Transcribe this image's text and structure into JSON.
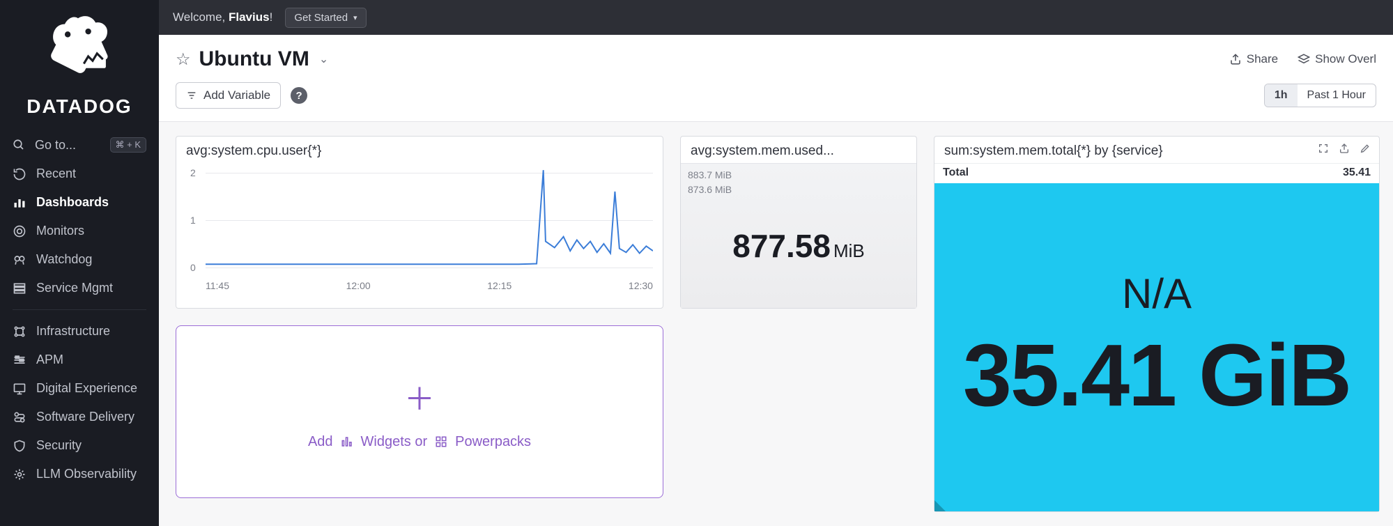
{
  "brand": "DATADOG",
  "goto": {
    "label": "Go to...",
    "shortcut": "⌘ + K"
  },
  "sidebar": {
    "items": [
      {
        "label": "Recent",
        "icon": "recent-icon"
      },
      {
        "label": "Dashboards",
        "icon": "dashboards-icon",
        "active": true
      },
      {
        "label": "Monitors",
        "icon": "monitors-icon"
      },
      {
        "label": "Watchdog",
        "icon": "watchdog-icon"
      },
      {
        "label": "Service Mgmt",
        "icon": "service-mgmt-icon"
      }
    ],
    "items2": [
      {
        "label": "Infrastructure",
        "icon": "infrastructure-icon"
      },
      {
        "label": "APM",
        "icon": "apm-icon"
      },
      {
        "label": "Digital Experience",
        "icon": "digital-exp-icon"
      },
      {
        "label": "Software Delivery",
        "icon": "software-delivery-icon"
      },
      {
        "label": "Security",
        "icon": "security-icon"
      },
      {
        "label": "LLM Observability",
        "icon": "llm-obs-icon"
      }
    ]
  },
  "topbar": {
    "welcome_prefix": "Welcome, ",
    "username": "Flavius",
    "suffix": "!",
    "get_started": "Get Started"
  },
  "page": {
    "title": "Ubuntu VM"
  },
  "actions": {
    "share": "Share",
    "overlays": "Show Overl"
  },
  "toolbar": {
    "add_variable": "Add Variable"
  },
  "time": {
    "short": "1h",
    "long": "Past 1 Hour"
  },
  "cpu_chart": {
    "title": "avg:system.cpu.user{*}",
    "type": "line",
    "line_color": "#3b7dd8",
    "grid_color": "#e7e8ec",
    "background": "#ffffff",
    "ylim": [
      0,
      2.2
    ],
    "yticks": [
      0,
      1,
      2
    ],
    "xticks": [
      "11:45",
      "12:00",
      "12:15",
      "12:30"
    ],
    "series": [
      [
        0,
        0.07
      ],
      [
        0.05,
        0.07
      ],
      [
        0.1,
        0.07
      ],
      [
        0.15,
        0.07
      ],
      [
        0.2,
        0.07
      ],
      [
        0.25,
        0.07
      ],
      [
        0.3,
        0.07
      ],
      [
        0.35,
        0.07
      ],
      [
        0.4,
        0.07
      ],
      [
        0.45,
        0.07
      ],
      [
        0.5,
        0.07
      ],
      [
        0.55,
        0.07
      ],
      [
        0.6,
        0.07
      ],
      [
        0.65,
        0.07
      ],
      [
        0.7,
        0.07
      ],
      [
        0.74,
        0.08
      ],
      [
        0.755,
        2.05
      ],
      [
        0.76,
        0.55
      ],
      [
        0.78,
        0.42
      ],
      [
        0.8,
        0.65
      ],
      [
        0.815,
        0.35
      ],
      [
        0.83,
        0.58
      ],
      [
        0.845,
        0.4
      ],
      [
        0.86,
        0.55
      ],
      [
        0.875,
        0.32
      ],
      [
        0.89,
        0.5
      ],
      [
        0.905,
        0.3
      ],
      [
        0.915,
        1.6
      ],
      [
        0.925,
        0.4
      ],
      [
        0.94,
        0.32
      ],
      [
        0.955,
        0.48
      ],
      [
        0.97,
        0.3
      ],
      [
        0.985,
        0.45
      ],
      [
        1.0,
        0.35
      ]
    ]
  },
  "mem_card": {
    "title": "avg:system.mem.used...",
    "marks": [
      "883.7 MiB",
      "873.6 MiB"
    ],
    "value": "877.58",
    "unit": "MiB",
    "bg_gradient_top": "#f2f3f5",
    "bg_gradient_bottom": "#ececee"
  },
  "tot_card": {
    "title": "sum:system.mem.total{*} by {service}",
    "row_label": "Total",
    "row_value": "35.41",
    "na": "N/A",
    "big": "35.41 GiB",
    "body_bg": "#1ec8f0",
    "text_color": "#1a1c23"
  },
  "add_widget": {
    "add": "Add",
    "widgets": "Widgets or",
    "powerpacks": "Powerpacks",
    "border_color": "#9b6dd7",
    "text_color": "#8a5cc7"
  }
}
